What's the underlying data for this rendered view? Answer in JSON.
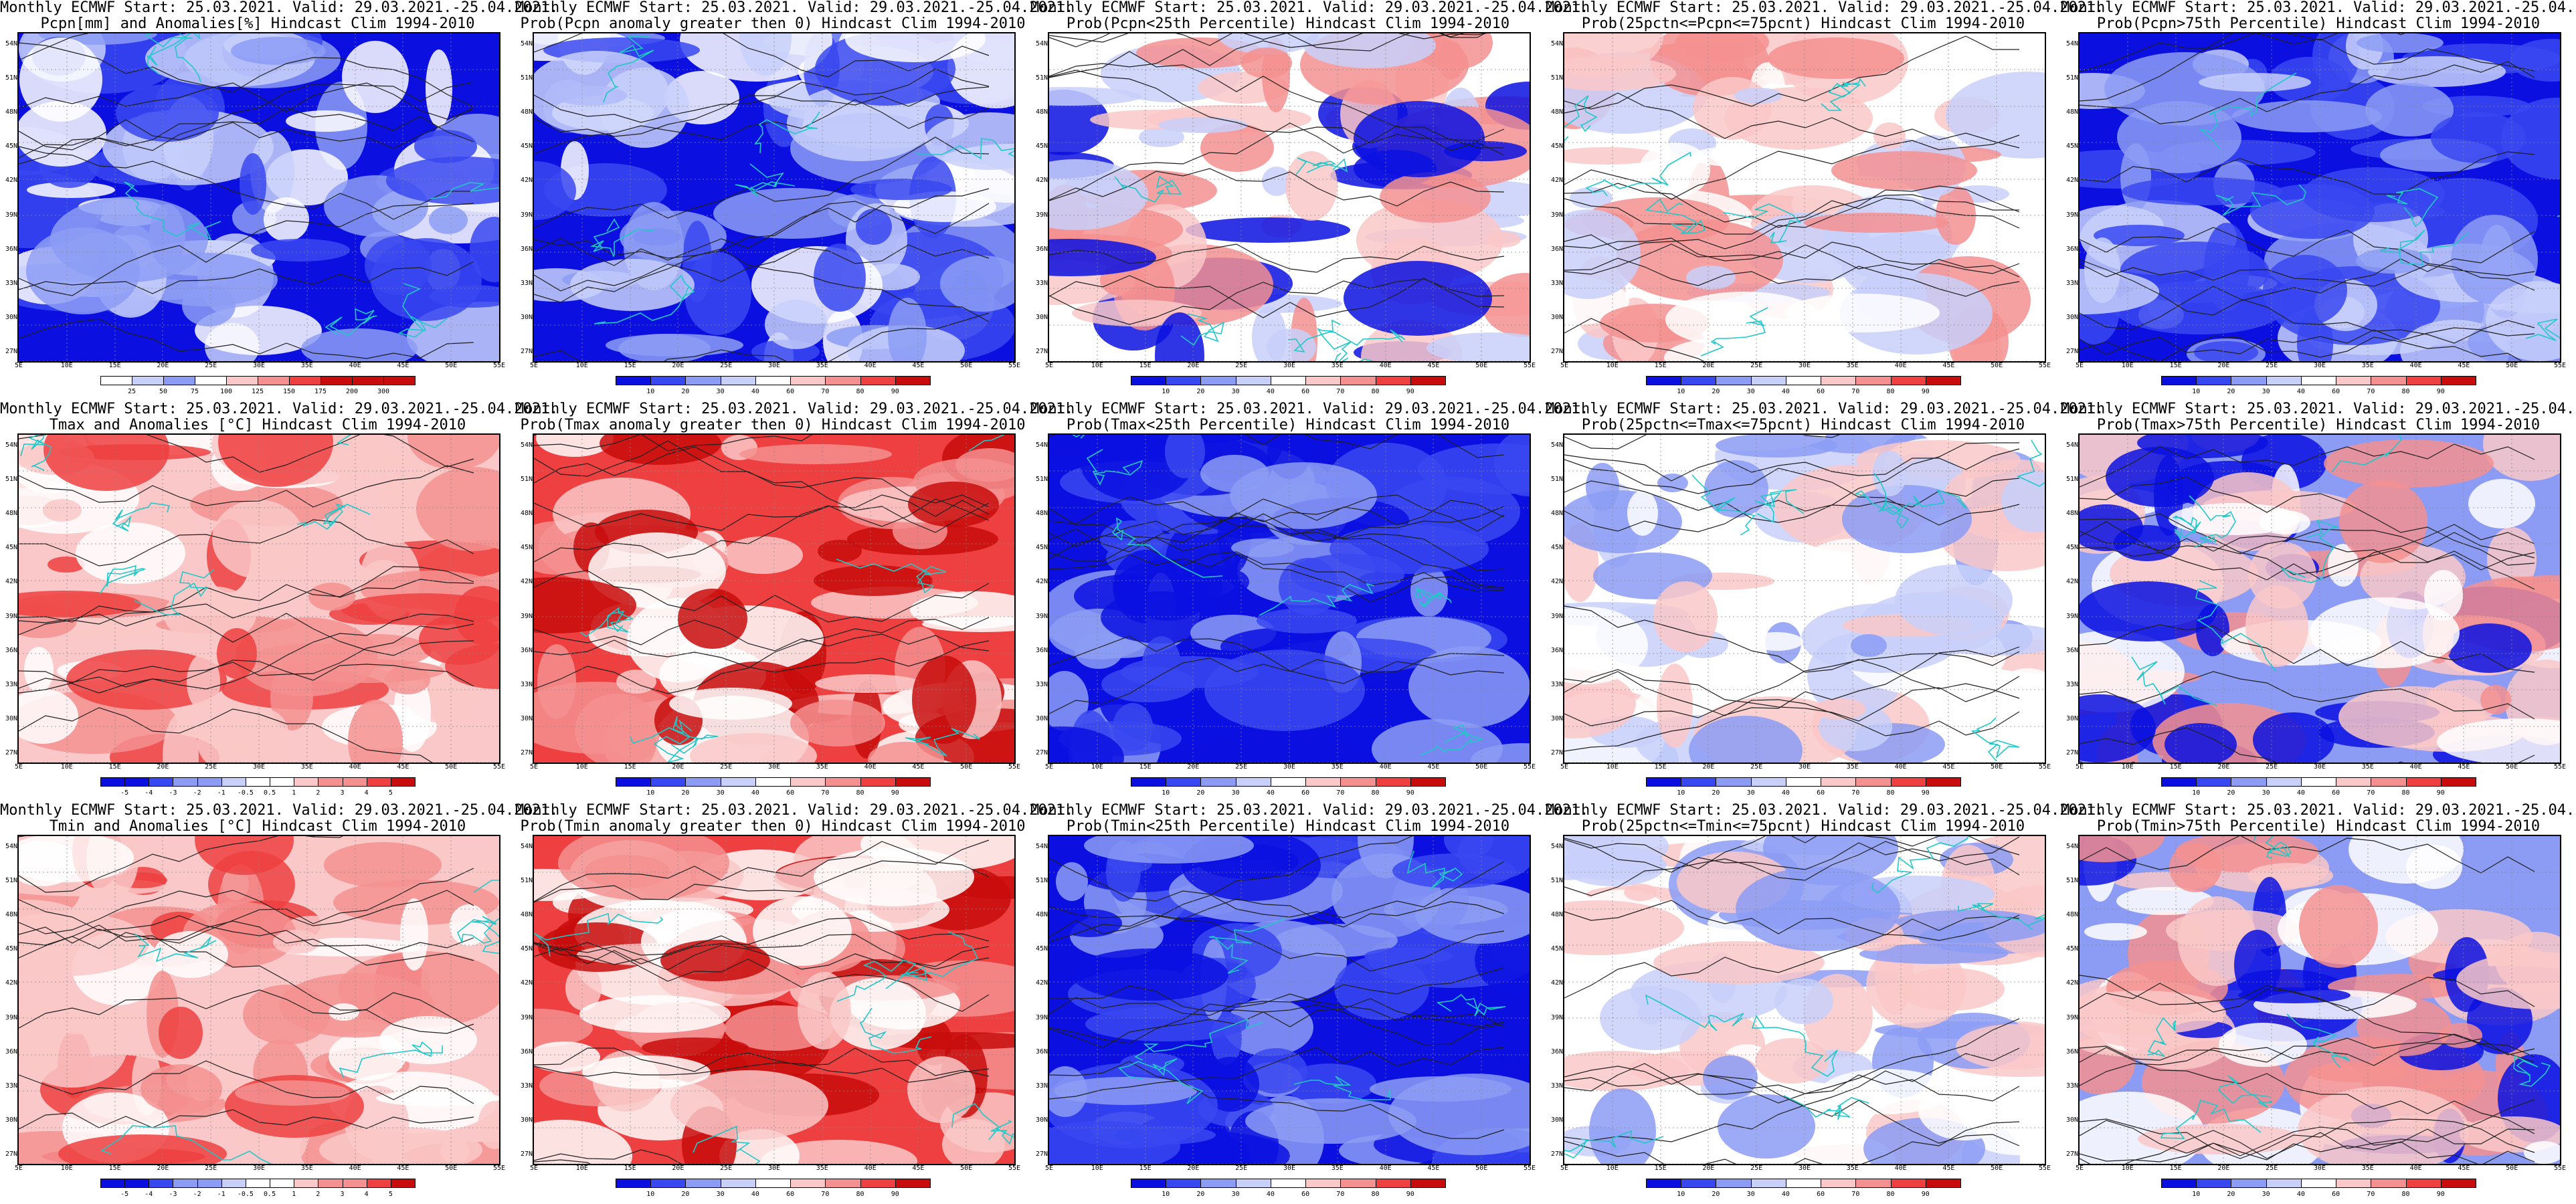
{
  "header": "Monthly ECMWF Start: 25.03.2021. Valid: 29.03.2021.-25.04.2021.",
  "lat_labels": [
    "54N",
    "51N",
    "48N",
    "45N",
    "42N",
    "39N",
    "36N",
    "33N",
    "30N",
    "27N"
  ],
  "lon_labels": [
    "5E",
    "10E",
    "15E",
    "20E",
    "25E",
    "30E",
    "35E",
    "40E",
    "45E",
    "50E",
    "55E"
  ],
  "colors": {
    "blue_dark": "#0b10e0",
    "blue": "#3848f0",
    "blue_mid": "#8c9cf4",
    "blue_light": "#c8d0fa",
    "white": "#ffffff",
    "red_light": "#fac8c8",
    "red_mid": "#f49090",
    "red": "#ee4040",
    "red_dark": "#c80c0c",
    "coast": "#20c8c8",
    "contour": "#202020"
  },
  "panels": [
    {
      "subtitle": "Pcpn[mm] and Anomalies[%] Hindcast Clim 1994-2010",
      "scheme": "wet",
      "colorbar": [
        "25",
        "50",
        "75",
        "100",
        "125",
        "150",
        "175",
        "200",
        "300"
      ]
    },
    {
      "subtitle": "Prob(Pcpn anomaly greater then 0) Hindcast Clim 1994-2010",
      "scheme": "wet",
      "colorbar": [
        "10",
        "20",
        "30",
        "40",
        "60",
        "70",
        "80",
        "90"
      ]
    },
    {
      "subtitle": "Prob(Pcpn<25th Percentile) Hindcast Clim 1994-2010",
      "scheme": "dryness",
      "colorbar": [
        "10",
        "20",
        "30",
        "40",
        "60",
        "70",
        "80",
        "90"
      ]
    },
    {
      "subtitle": "Prob(25pctn<=Pcpn<=75pcnt) Hindcast Clim 1994-2010",
      "scheme": "neutral",
      "colorbar": [
        "10",
        "20",
        "30",
        "40",
        "60",
        "70",
        "80",
        "90"
      ]
    },
    {
      "subtitle": "Prob(Pcpn>75th Percentile) Hindcast Clim 1994-2010",
      "scheme": "verywet",
      "colorbar": [
        "10",
        "20",
        "30",
        "40",
        "60",
        "70",
        "80",
        "90"
      ]
    },
    {
      "subtitle": "Tmax and Anomalies [°C] Hindcast Clim 1994-2010",
      "scheme": "warm",
      "colorbar": [
        "-5",
        "-4",
        "-3",
        "-2",
        "-1",
        "-0.5",
        "0.5",
        "1",
        "2",
        "3",
        "4",
        "5"
      ]
    },
    {
      "subtitle": "Prob(Tmax anomaly greater then 0) Hindcast Clim 1994-2010",
      "scheme": "hot",
      "colorbar": [
        "10",
        "20",
        "30",
        "40",
        "60",
        "70",
        "80",
        "90"
      ]
    },
    {
      "subtitle": "Prob(Tmax<25th Percentile) Hindcast Clim 1994-2010",
      "scheme": "cold",
      "colorbar": [
        "10",
        "20",
        "30",
        "40",
        "60",
        "70",
        "80",
        "90"
      ]
    },
    {
      "subtitle": "Prob(25pctn<=Tmax<=75pcnt) Hindcast Clim 1994-2010",
      "scheme": "neutral2",
      "colorbar": [
        "10",
        "20",
        "30",
        "40",
        "60",
        "70",
        "80",
        "90"
      ]
    },
    {
      "subtitle": "Prob(Tmax>75th Percentile) Hindcast Clim 1994-2010",
      "scheme": "mixed",
      "colorbar": [
        "10",
        "20",
        "30",
        "40",
        "60",
        "70",
        "80",
        "90"
      ]
    },
    {
      "subtitle": "Tmin and Anomalies [°C] Hindcast Clim 1994-2010",
      "scheme": "warm",
      "colorbar": [
        "-5",
        "-4",
        "-3",
        "-2",
        "-1",
        "-0.5",
        "0.5",
        "1",
        "2",
        "3",
        "4",
        "5"
      ]
    },
    {
      "subtitle": "Prob(Tmin anomaly greater then 0) Hindcast Clim 1994-2010",
      "scheme": "hot",
      "colorbar": [
        "10",
        "20",
        "30",
        "40",
        "60",
        "70",
        "80",
        "90"
      ]
    },
    {
      "subtitle": "Prob(Tmin<25th Percentile) Hindcast Clim 1994-2010",
      "scheme": "cold",
      "colorbar": [
        "10",
        "20",
        "30",
        "40",
        "60",
        "70",
        "80",
        "90"
      ]
    },
    {
      "subtitle": "Prob(25pctn<=Tmin<=75pcnt) Hindcast Clim 1994-2010",
      "scheme": "neutral2",
      "colorbar": [
        "10",
        "20",
        "30",
        "40",
        "60",
        "70",
        "80",
        "90"
      ]
    },
    {
      "subtitle": "Prob(Tmin>75th Percentile) Hindcast Clim 1994-2010",
      "scheme": "mixed",
      "colorbar": [
        "10",
        "20",
        "30",
        "40",
        "60",
        "70",
        "80",
        "90"
      ]
    }
  ]
}
